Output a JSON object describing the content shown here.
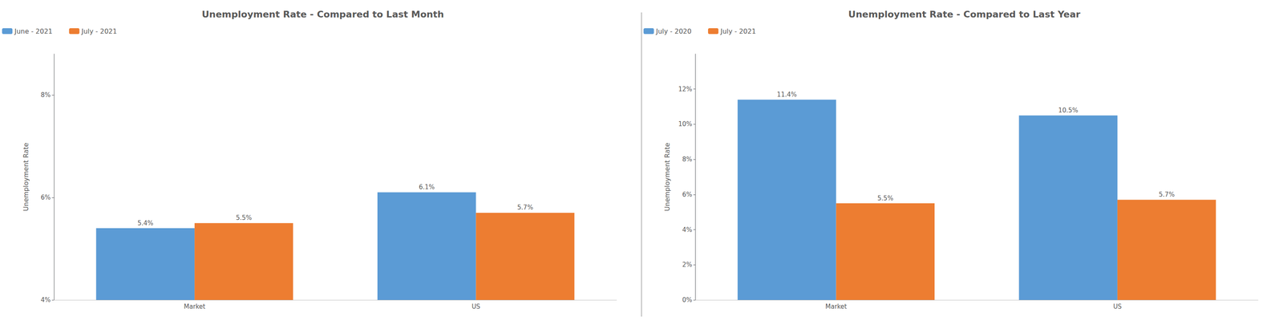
{
  "chart_data": [
    {
      "type": "bar",
      "title": "Unemployment Rate - Compared to Last Month",
      "ylabel": "Unemployment Rate",
      "categories": [
        "Market",
        "US"
      ],
      "series": [
        {
          "name": "June - 2021",
          "color": "#5B9BD5",
          "values": [
            5.4,
            6.1
          ],
          "value_labels": [
            "5.4%",
            "6.1%"
          ]
        },
        {
          "name": "July - 2021",
          "color": "#ED7D31",
          "values": [
            5.5,
            5.7
          ],
          "value_labels": [
            "5.5%",
            "5.7%"
          ]
        }
      ],
      "ylim": [
        4.0,
        8.8
      ],
      "yticks": [
        {
          "value": 4,
          "label": "4%"
        },
        {
          "value": 6,
          "label": "6%"
        },
        {
          "value": 8,
          "label": "8%"
        }
      ],
      "grid": false,
      "legend": "top",
      "data_labels": true
    },
    {
      "type": "bar",
      "title": "Unemployment Rate - Compared to Last Year",
      "ylabel": "Unemployment Rate",
      "categories": [
        "Market",
        "US"
      ],
      "series": [
        {
          "name": "July - 2020",
          "color": "#5B9BD5",
          "values": [
            11.4,
            10.5
          ],
          "value_labels": [
            "11.4%",
            "10.5%"
          ]
        },
        {
          "name": "July - 2021",
          "color": "#ED7D31",
          "values": [
            5.5,
            5.7
          ],
          "value_labels": [
            "5.5%",
            "5.7%"
          ]
        }
      ],
      "ylim": [
        0.0,
        14.0
      ],
      "yticks": [
        {
          "value": 0,
          "label": "0%"
        },
        {
          "value": 2,
          "label": "2%"
        },
        {
          "value": 4,
          "label": "4%"
        },
        {
          "value": 6,
          "label": "6%"
        },
        {
          "value": 8,
          "label": "8%"
        },
        {
          "value": 10,
          "label": "10%"
        },
        {
          "value": 12,
          "label": "12%"
        }
      ],
      "grid": false,
      "legend": "top",
      "data_labels": true
    }
  ]
}
